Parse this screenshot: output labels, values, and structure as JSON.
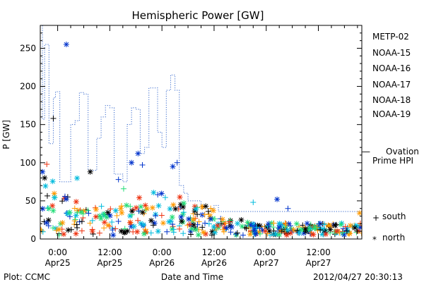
{
  "chart_data": {
    "type": "scatter",
    "title": "Hemispheric Power [GW]",
    "ylabel": "P [GW]",
    "xlabel": "Date and Time",
    "ylim": [
      0,
      280
    ],
    "y_ticks": [
      0,
      50,
      100,
      150,
      200,
      250
    ],
    "xlim": [
      "2012-04-24T20:00",
      "2012-04-27T22:00"
    ],
    "x_ticks": [
      {
        "t": "2012-04-25T00:00",
        "time": "0:00",
        "date": "Apr25"
      },
      {
        "t": "2012-04-25T12:00",
        "time": "12:00",
        "date": "Apr25"
      },
      {
        "t": "2012-04-26T00:00",
        "time": "0:00",
        "date": "Apr26"
      },
      {
        "t": "2012-04-26T12:00",
        "time": "12:00",
        "date": "Apr26"
      },
      {
        "t": "2012-04-27T00:00",
        "time": "0:00",
        "date": "Apr27"
      },
      {
        "t": "2012-04-27T12:00",
        "time": "12:00",
        "date": "Apr27"
      }
    ],
    "grid": false,
    "legend_position": "right",
    "series": [
      {
        "name": "METP-02",
        "color": "#000000"
      },
      {
        "name": "NOAA-15",
        "color": "#0033cc"
      },
      {
        "name": "NOAA-16",
        "color": "#00bbdd"
      },
      {
        "name": "NOAA-17",
        "color": "#22dd77"
      },
      {
        "name": "NOAA-18",
        "color": "#ff9900"
      },
      {
        "name": "NOAA-19",
        "color": "#ee3311"
      }
    ],
    "ovation": {
      "label_line1": "Ovation",
      "label_line2": "Prime HPI",
      "color": "#3366cc",
      "points": [
        [
          "2012-04-24T20:00",
          280
        ],
        [
          "2012-04-24T20:30",
          157
        ],
        [
          "2012-04-24T21:00",
          255
        ],
        [
          "2012-04-24T22:00",
          125
        ],
        [
          "2012-04-24T23:00",
          185
        ],
        [
          "2012-04-24T23:30",
          193
        ],
        [
          "2012-04-25T00:30",
          75
        ],
        [
          "2012-04-25T02:00",
          75
        ],
        [
          "2012-04-25T03:00",
          150
        ],
        [
          "2012-04-25T04:00",
          155
        ],
        [
          "2012-04-25T05:00",
          192
        ],
        [
          "2012-04-25T06:00",
          190
        ],
        [
          "2012-04-25T07:00",
          90
        ],
        [
          "2012-04-25T08:00",
          90
        ],
        [
          "2012-04-25T09:00",
          132
        ],
        [
          "2012-04-25T10:00",
          160
        ],
        [
          "2012-04-25T11:00",
          175
        ],
        [
          "2012-04-25T12:00",
          172
        ],
        [
          "2012-04-25T13:00",
          85
        ],
        [
          "2012-04-25T15:00",
          75
        ],
        [
          "2012-04-25T16:00",
          150
        ],
        [
          "2012-04-25T17:00",
          172
        ],
        [
          "2012-04-25T18:00",
          170
        ],
        [
          "2012-04-25T19:00",
          112
        ],
        [
          "2012-04-25T20:00",
          120
        ],
        [
          "2012-04-25T21:00",
          198
        ],
        [
          "2012-04-25T22:00",
          198
        ],
        [
          "2012-04-25T23:00",
          140
        ],
        [
          "2012-04-26T00:00",
          120
        ],
        [
          "2012-04-26T01:00",
          195
        ],
        [
          "2012-04-26T02:00",
          215
        ],
        [
          "2012-04-26T03:00",
          195
        ],
        [
          "2012-04-26T04:00",
          70
        ],
        [
          "2012-04-26T05:00",
          60
        ],
        [
          "2012-04-26T06:00",
          50
        ],
        [
          "2012-04-26T09:00",
          40
        ],
        [
          "2012-04-26T12:00",
          44
        ],
        [
          "2012-04-26T13:00",
          36
        ],
        [
          "2012-04-27T22:00",
          36
        ]
      ]
    },
    "markers": {
      "south_label": "south",
      "north_label": "north",
      "south_symbol": "+",
      "north_symbol": "*"
    }
  },
  "footer": {
    "left": "Plot: CCMC",
    "right": "2012/04/27 20:30:13"
  }
}
